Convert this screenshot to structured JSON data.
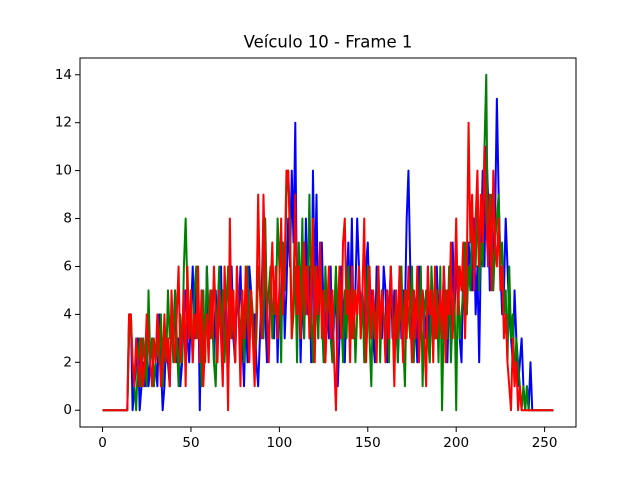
{
  "chart_data": {
    "type": "line",
    "title": "Veículo 10 - Frame 1",
    "x": [
      0,
      1,
      2,
      3,
      4,
      5,
      6,
      7,
      8,
      9,
      10,
      11,
      12,
      13,
      14,
      15,
      16,
      17,
      18,
      19,
      20,
      21,
      22,
      23,
      24,
      25,
      26,
      27,
      28,
      29,
      30,
      31,
      32,
      33,
      34,
      35,
      36,
      37,
      38,
      39,
      40,
      41,
      42,
      43,
      44,
      45,
      46,
      47,
      48,
      49,
      50,
      51,
      52,
      53,
      54,
      55,
      56,
      57,
      58,
      59,
      60,
      61,
      62,
      63,
      64,
      65,
      66,
      67,
      68,
      69,
      70,
      71,
      72,
      73,
      74,
      75,
      76,
      77,
      78,
      79,
      80,
      81,
      82,
      83,
      84,
      85,
      86,
      87,
      88,
      89,
      90,
      91,
      92,
      93,
      94,
      95,
      96,
      97,
      98,
      99,
      100,
      101,
      102,
      103,
      104,
      105,
      106,
      107,
      108,
      109,
      110,
      111,
      112,
      113,
      114,
      115,
      116,
      117,
      118,
      119,
      120,
      121,
      122,
      123,
      124,
      125,
      126,
      127,
      128,
      129,
      130,
      131,
      132,
      133,
      134,
      135,
      136,
      137,
      138,
      139,
      140,
      141,
      142,
      143,
      144,
      145,
      146,
      147,
      148,
      149,
      150,
      151,
      152,
      153,
      154,
      155,
      156,
      157,
      158,
      159,
      160,
      161,
      162,
      163,
      164,
      165,
      166,
      167,
      168,
      169,
      170,
      171,
      172,
      173,
      174,
      175,
      176,
      177,
      178,
      179,
      180,
      181,
      182,
      183,
      184,
      185,
      186,
      187,
      188,
      189,
      190,
      191,
      192,
      193,
      194,
      195,
      196,
      197,
      198,
      199,
      200,
      201,
      202,
      203,
      204,
      205,
      206,
      207,
      208,
      209,
      210,
      211,
      212,
      213,
      214,
      215,
      216,
      217,
      218,
      219,
      220,
      221,
      222,
      223,
      224,
      225,
      226,
      227,
      228,
      229,
      230,
      231,
      232,
      233,
      234,
      235,
      236,
      237,
      238,
      239,
      240,
      241,
      242,
      243,
      244,
      245,
      246,
      247,
      248,
      249,
      250,
      251,
      252,
      253,
      254,
      255
    ],
    "series": [
      {
        "color": "#0000ff",
        "values": [
          0,
          0,
          0,
          0,
          0,
          0,
          0,
          0,
          0,
          0,
          0,
          0,
          0,
          0,
          0,
          4,
          4,
          0,
          1,
          2,
          3,
          0,
          1,
          2,
          1,
          3,
          1,
          2,
          3,
          1,
          2,
          1,
          4,
          2,
          0,
          1,
          3,
          2,
          1,
          4,
          3,
          5,
          2,
          3,
          1,
          2,
          4,
          5,
          3,
          2,
          4,
          6,
          3,
          5,
          6,
          0,
          5,
          4,
          2,
          6,
          3,
          5,
          4,
          2,
          5,
          3,
          4,
          6,
          2,
          3,
          5,
          1,
          4,
          6,
          3,
          2,
          5,
          4,
          6,
          3,
          1,
          4,
          2,
          6,
          5,
          3,
          4,
          2,
          1,
          3,
          5,
          8,
          4,
          2,
          3,
          5,
          4,
          3,
          6,
          2,
          5,
          4,
          7,
          3,
          5,
          8,
          6,
          10,
          7,
          12,
          4,
          6,
          2,
          5,
          3,
          8,
          4,
          6,
          2,
          10,
          5,
          9,
          3,
          6,
          7,
          4,
          2,
          5,
          3,
          6,
          2,
          4,
          5,
          1,
          3,
          6,
          4,
          2,
          5,
          7,
          4,
          8,
          3,
          5,
          8,
          6,
          4,
          5,
          3,
          6,
          7,
          4,
          5,
          3,
          2,
          6,
          5,
          4,
          3,
          6,
          5,
          2,
          4,
          6,
          3,
          5,
          4,
          2,
          6,
          3,
          5,
          4,
          8,
          10,
          6,
          3,
          5,
          4,
          2,
          6,
          3,
          5,
          4,
          3,
          6,
          2,
          5,
          4,
          3,
          6,
          4,
          5,
          3,
          6,
          4,
          2,
          5,
          3,
          7,
          4,
          6,
          5,
          3,
          2,
          6,
          5,
          4,
          7,
          6,
          5,
          8,
          4,
          6,
          2,
          7,
          10,
          6,
          11,
          9,
          5,
          7,
          6,
          8,
          13,
          9,
          6,
          4,
          5,
          8,
          6,
          4,
          3,
          2,
          5,
          3,
          1,
          2,
          3,
          1,
          0,
          1,
          0,
          2,
          0,
          0,
          0,
          0,
          0,
          0,
          0,
          0,
          0,
          0,
          0,
          0,
          0
        ]
      },
      {
        "color": "#008000",
        "values": [
          0,
          0,
          0,
          0,
          0,
          0,
          0,
          0,
          0,
          0,
          0,
          0,
          0,
          0,
          0,
          3,
          4,
          2,
          1,
          0,
          2,
          3,
          1,
          3,
          2,
          1,
          5,
          2,
          3,
          1,
          2,
          3,
          2,
          4,
          1,
          3,
          2,
          5,
          3,
          4,
          2,
          5,
          3,
          1,
          4,
          2,
          6,
          8,
          5,
          3,
          4,
          2,
          5,
          6,
          3,
          4,
          1,
          5,
          2,
          6,
          4,
          3,
          5,
          2,
          1,
          4,
          6,
          3,
          5,
          2,
          4,
          6,
          3,
          5,
          4,
          2,
          6,
          4,
          3,
          5,
          2,
          4,
          6,
          3,
          5,
          4,
          2,
          3,
          6,
          5,
          4,
          3,
          8,
          4,
          5,
          6,
          3,
          5,
          4,
          8,
          6,
          2,
          7,
          5,
          9,
          10,
          8,
          3,
          4,
          6,
          2,
          7,
          4,
          8,
          3,
          6,
          5,
          9,
          4,
          2,
          6,
          5,
          3,
          7,
          4,
          2,
          6,
          4,
          5,
          3,
          2,
          4,
          6,
          3,
          5,
          4,
          2,
          5,
          3,
          6,
          4,
          3,
          5,
          2,
          4,
          6,
          3,
          5,
          2,
          4,
          6,
          3,
          1,
          5,
          3,
          4,
          6,
          2,
          5,
          4,
          3,
          5,
          2,
          6,
          4,
          3,
          5,
          2,
          4,
          6,
          3,
          1,
          5,
          4,
          3,
          6,
          2,
          4,
          5,
          3,
          6,
          1,
          4,
          5,
          3,
          2,
          6,
          4,
          3,
          5,
          2,
          6,
          0,
          4,
          5,
          3,
          6,
          2,
          4,
          5,
          0,
          6,
          3,
          4,
          5,
          7,
          4,
          6,
          5,
          8,
          7,
          6,
          9,
          5,
          7,
          6,
          11,
          14,
          6,
          8,
          9,
          5,
          7,
          8,
          9,
          6,
          7,
          4,
          5,
          2,
          6,
          3,
          4,
          1,
          3,
          2,
          1,
          0,
          1,
          0,
          1,
          0,
          0,
          0,
          0,
          0,
          0,
          0,
          0,
          0,
          0,
          0,
          0,
          0,
          0,
          0
        ]
      },
      {
        "color": "#ff0000",
        "values": [
          0,
          0,
          0,
          0,
          0,
          0,
          0,
          0,
          0,
          0,
          0,
          0,
          0,
          0,
          0,
          4,
          4,
          2,
          1,
          3,
          2,
          1,
          3,
          1,
          2,
          4,
          3,
          2,
          1,
          3,
          2,
          4,
          3,
          1,
          2,
          4,
          2,
          3,
          1,
          5,
          3,
          2,
          4,
          6,
          2,
          3,
          5,
          1,
          6,
          3,
          5,
          2,
          4,
          3,
          6,
          2,
          5,
          1,
          3,
          4,
          2,
          5,
          3,
          6,
          4,
          2,
          5,
          3,
          1,
          6,
          4,
          0,
          8,
          3,
          5,
          2,
          6,
          4,
          1,
          5,
          3,
          6,
          4,
          2,
          5,
          3,
          1,
          4,
          9,
          5,
          3,
          9,
          6,
          4,
          2,
          5,
          7,
          4,
          6,
          3,
          5,
          8,
          4,
          6,
          10,
          10,
          7,
          3,
          5,
          9,
          4,
          6,
          3,
          5,
          7,
          4,
          6,
          3,
          5,
          8,
          2,
          6,
          4,
          7,
          3,
          5,
          2,
          4,
          6,
          3,
          5,
          2,
          0,
          4,
          6,
          3,
          7,
          8,
          4,
          5,
          2,
          6,
          3,
          5,
          4,
          6,
          3,
          5,
          8,
          2,
          4,
          6,
          3,
          5,
          4,
          2,
          6,
          3,
          5,
          4,
          2,
          5,
          3,
          6,
          4,
          1,
          5,
          3,
          6,
          4,
          2,
          5,
          3,
          6,
          4,
          2,
          5,
          3,
          6,
          2,
          4,
          5,
          3,
          1,
          6,
          4,
          5,
          2,
          6,
          3,
          4,
          5,
          3,
          6,
          2,
          5,
          4,
          7,
          3,
          5,
          8,
          4,
          6,
          5,
          7,
          3,
          6,
          12,
          7,
          9,
          5,
          8,
          10,
          6,
          9,
          7,
          11,
          8,
          6,
          9,
          5,
          10,
          7,
          6,
          8,
          5,
          6,
          3,
          4,
          2,
          1,
          0,
          3,
          1,
          2,
          0,
          1,
          0,
          0,
          0,
          0,
          0,
          0,
          0,
          0,
          0,
          0,
          0,
          0,
          0,
          0,
          0,
          0,
          0,
          0,
          0
        ]
      }
    ],
    "xlim": [
      -12.75,
      267.75
    ],
    "xticks": [
      0,
      50,
      100,
      150,
      200,
      250
    ],
    "ylim": [
      -0.7,
      14.7
    ],
    "yticks": [
      0,
      2,
      4,
      6,
      8,
      10,
      12,
      14
    ]
  }
}
